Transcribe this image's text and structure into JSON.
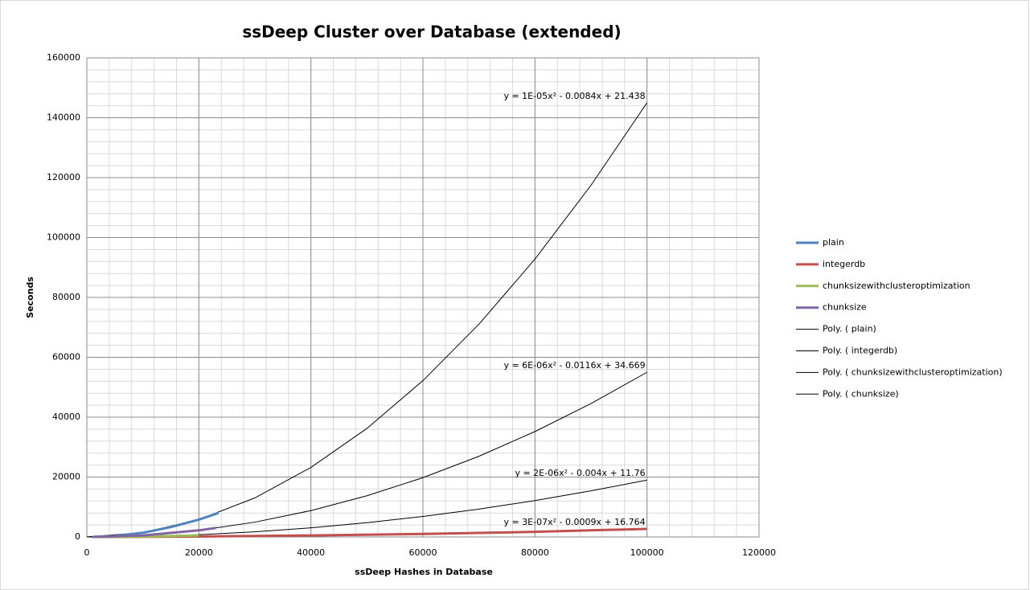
{
  "chart_data": {
    "type": "line",
    "title": "ssDeep Cluster over Database (extended)",
    "x_label": "ssDeep Hashes in Database",
    "y_label": "Seconds",
    "xlim": [
      0,
      120000
    ],
    "xticks": [
      0,
      20000,
      40000,
      60000,
      80000,
      100000,
      120000
    ],
    "ylim": [
      0,
      160000
    ],
    "yticks": [
      0,
      20000,
      40000,
      60000,
      80000,
      100000,
      120000,
      140000,
      160000
    ],
    "grid": true,
    "minor_grid_step": 4000,
    "legend": "right",
    "series": [
      {
        "name": "plain",
        "color": "#4f81bd",
        "x": [
          1000,
          5000,
          10000,
          15000,
          20000,
          23500
        ],
        "values": [
          0,
          300,
          1400,
          3300,
          5800,
          8000
        ]
      },
      {
        "name": "integerdb",
        "color": "#c0504d",
        "x": [
          1000,
          20000,
          40000,
          60000,
          80000,
          100000
        ],
        "values": [
          0,
          150,
          500,
          1000,
          1700,
          2700
        ]
      },
      {
        "name": "chunksizewithclusteroptimization",
        "color": "#9bbb59",
        "x": [
          1000,
          10000,
          20000
        ],
        "values": [
          0,
          150,
          500
        ]
      },
      {
        "name": "chunksize",
        "color": "#8064a2",
        "x": [
          1000,
          10000,
          20000,
          23000
        ],
        "values": [
          0,
          500,
          2200,
          3000
        ]
      },
      {
        "name": "Poly. ( plain)",
        "color": "#000000",
        "x": [
          0,
          10000,
          20000,
          30000,
          40000,
          50000,
          60000,
          70000,
          80000,
          90000,
          100000
        ],
        "values": [
          0,
          1450,
          5800,
          13050,
          23200,
          36250,
          52200,
          71050,
          92800,
          117450,
          145000
        ],
        "annotation": "y = 1E-05x² - 0.0084x + 21.438"
      },
      {
        "name": "Poly. ( integerdb)",
        "color": "#000000",
        "x": [
          0,
          10000,
          20000,
          30000,
          40000,
          50000,
          60000,
          70000,
          80000,
          90000,
          100000
        ],
        "values": [
          0,
          27,
          108,
          243,
          432,
          675,
          972,
          1323,
          1728,
          2187,
          2700
        ],
        "annotation": "y = 3E-07x² - 0.0009x + 16.764"
      },
      {
        "name": "Poly. ( chunksizewithclusteroptimization)",
        "color": "#000000",
        "x": [
          0,
          10000,
          20000,
          30000,
          40000,
          50000,
          60000,
          70000,
          80000,
          90000,
          100000
        ],
        "values": [
          0,
          190,
          760,
          1710,
          3040,
          4750,
          6840,
          9310,
          12160,
          15390,
          19000
        ],
        "annotation": "y = 2E-06x² - 0.004x + 11.76"
      },
      {
        "name": "Poly. ( chunksize)",
        "color": "#000000",
        "x": [
          0,
          10000,
          20000,
          30000,
          40000,
          50000,
          60000,
          70000,
          80000,
          90000,
          100000
        ],
        "values": [
          0,
          550,
          2200,
          4950,
          8800,
          13750,
          19800,
          26950,
          35200,
          44550,
          55000
        ],
        "annotation": "y = 6E-06x² - 0.0116x + 34.669"
      }
    ]
  }
}
